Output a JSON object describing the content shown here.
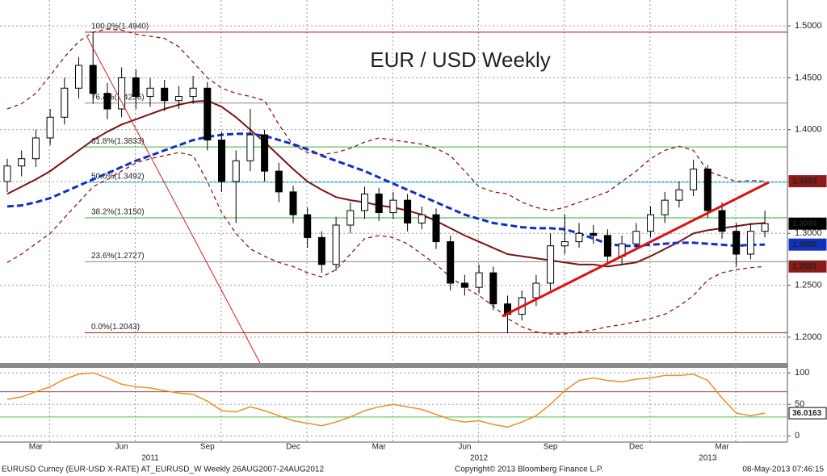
{
  "chart_data": [
    {
      "type": "candlestick",
      "title": "EUR / USD Weekly",
      "title_color": "#d81010",
      "categories": [
        null,
        null,
        "Mar",
        null,
        null,
        null,
        null,
        null,
        "Jun",
        null,
        null,
        null,
        null,
        null,
        "Sep",
        null,
        null,
        null,
        null,
        null,
        "Dec",
        null,
        null,
        null,
        null,
        null,
        "Mar",
        null,
        null,
        null,
        null,
        null,
        "Jun",
        null,
        null,
        null,
        null,
        null,
        "Sep",
        null,
        null,
        null,
        null,
        null,
        "Dec",
        null,
        null,
        null,
        null,
        null,
        "Mar",
        null,
        null,
        null
      ],
      "years": [
        null,
        null,
        null,
        null,
        null,
        null,
        null,
        null,
        null,
        null,
        "2011",
        null,
        null,
        null,
        null,
        null,
        null,
        null,
        null,
        null,
        null,
        null,
        null,
        null,
        null,
        null,
        null,
        null,
        null,
        null,
        null,
        null,
        null,
        "2012",
        null,
        null,
        null,
        null,
        null,
        null,
        null,
        null,
        null,
        null,
        null,
        null,
        null,
        null,
        null,
        "2013",
        null,
        null,
        null,
        null
      ],
      "open": [
        1.35,
        1.365,
        1.372,
        1.392,
        1.412,
        1.44,
        1.462,
        1.435,
        1.42,
        1.45,
        1.432,
        1.44,
        1.428,
        1.432,
        1.44,
        1.39,
        1.35,
        1.37,
        1.395,
        1.36,
        1.34,
        1.318,
        1.296,
        1.27,
        1.308,
        1.322,
        1.338,
        1.32,
        1.332,
        1.31,
        1.318,
        1.292,
        1.252,
        1.248,
        1.262,
        1.232,
        1.222,
        1.238,
        1.252,
        1.288,
        1.292,
        1.3,
        1.298,
        1.278,
        1.29,
        1.302,
        1.318,
        1.332,
        1.342,
        1.362,
        1.322,
        1.302,
        1.28,
        1.302
      ],
      "high": [
        1.372,
        1.38,
        1.4,
        1.42,
        1.45,
        1.47,
        1.494,
        1.445,
        1.46,
        1.458,
        1.45,
        1.448,
        1.442,
        1.452,
        1.446,
        1.398,
        1.38,
        1.42,
        1.4,
        1.368,
        1.346,
        1.325,
        1.302,
        1.316,
        1.33,
        1.345,
        1.344,
        1.34,
        1.338,
        1.326,
        1.324,
        1.298,
        1.26,
        1.27,
        1.268,
        1.24,
        1.245,
        1.26,
        1.3,
        1.318,
        1.31,
        1.308,
        1.304,
        1.298,
        1.31,
        1.326,
        1.34,
        1.35,
        1.371,
        1.366,
        1.33,
        1.31,
        1.31,
        1.322
      ],
      "low": [
        1.34,
        1.355,
        1.364,
        1.385,
        1.405,
        1.43,
        1.425,
        1.41,
        1.412,
        1.42,
        1.422,
        1.418,
        1.42,
        1.425,
        1.38,
        1.34,
        1.31,
        1.36,
        1.35,
        1.33,
        1.31,
        1.286,
        1.262,
        1.264,
        1.3,
        1.314,
        1.312,
        1.314,
        1.302,
        1.304,
        1.285,
        1.245,
        1.24,
        1.242,
        1.226,
        1.204,
        1.216,
        1.23,
        1.245,
        1.28,
        1.286,
        1.29,
        1.27,
        1.27,
        1.284,
        1.296,
        1.31,
        1.325,
        1.336,
        1.315,
        1.295,
        1.268,
        1.275,
        1.296
      ],
      "close": [
        1.365,
        1.372,
        1.392,
        1.412,
        1.44,
        1.462,
        1.435,
        1.42,
        1.45,
        1.432,
        1.44,
        1.428,
        1.432,
        1.44,
        1.39,
        1.35,
        1.37,
        1.395,
        1.36,
        1.34,
        1.318,
        1.296,
        1.27,
        1.308,
        1.322,
        1.338,
        1.32,
        1.332,
        1.31,
        1.318,
        1.292,
        1.252,
        1.248,
        1.262,
        1.232,
        1.222,
        1.238,
        1.252,
        1.288,
        1.292,
        1.3,
        1.298,
        1.278,
        1.29,
        1.302,
        1.318,
        1.332,
        1.342,
        1.362,
        1.322,
        1.302,
        1.28,
        1.302,
        1.3094
      ],
      "up_color": "#ffffff",
      "down_color": "#000000",
      "close_box_color": "#000000",
      "overlays": [
        {
          "color": "#7a1515",
          "dash": false,
          "value_box": false,
          "values": [
            1.338,
            1.345,
            1.352,
            1.36,
            1.37,
            1.38,
            1.39,
            1.398,
            1.405,
            1.41,
            1.415,
            1.42,
            1.424,
            1.427,
            1.428,
            1.422,
            1.412,
            1.4,
            1.388,
            1.375,
            1.362,
            1.35,
            1.342,
            1.335,
            1.332,
            1.33,
            1.327,
            1.325,
            1.322,
            1.318,
            1.312,
            1.305,
            1.298,
            1.292,
            1.286,
            1.28,
            1.278,
            1.276,
            1.274,
            1.272,
            1.27,
            1.27,
            1.268,
            1.27,
            1.272,
            1.278,
            1.285,
            1.292,
            1.3,
            1.303,
            1.305,
            1.307,
            1.309,
            1.31
          ]
        },
        {
          "color": "#1030c0",
          "dash": true,
          "value_box": true,
          "values": [
            1.326,
            1.327,
            1.33,
            1.334,
            1.34,
            1.346,
            1.352,
            1.358,
            1.364,
            1.37,
            1.375,
            1.38,
            1.385,
            1.39,
            1.393,
            1.395,
            1.396,
            1.396,
            1.394,
            1.39,
            1.386,
            1.381,
            1.375,
            1.37,
            1.365,
            1.36,
            1.354,
            1.348,
            1.342,
            1.336,
            1.33,
            1.324,
            1.318,
            1.314,
            1.31,
            1.308,
            1.306,
            1.305,
            1.305,
            1.304,
            1.3,
            1.295,
            1.29,
            1.288,
            1.288,
            1.289,
            1.29,
            1.291,
            1.291,
            1.29,
            1.289,
            1.288,
            1.289,
            1.2892
          ]
        },
        {
          "color": "#8b1a1a",
          "dash": true,
          "value_box": true,
          "values": [
            1.42,
            1.425,
            1.435,
            1.452,
            1.47,
            1.485,
            1.494,
            1.497,
            1.496,
            1.492,
            1.49,
            1.488,
            1.48,
            1.465,
            1.45,
            1.44,
            1.435,
            1.432,
            1.428,
            1.405,
            1.385,
            1.378,
            1.376,
            1.378,
            1.382,
            1.388,
            1.392,
            1.39,
            1.388,
            1.386,
            1.382,
            1.375,
            1.36,
            1.345,
            1.34,
            1.338,
            1.33,
            1.325,
            1.322,
            1.325,
            1.33,
            1.335,
            1.34,
            1.35,
            1.36,
            1.372,
            1.38,
            1.384,
            1.38,
            1.36,
            1.355,
            1.35,
            1.351,
            1.3503
          ]
        },
        {
          "color": "#8b1a1a",
          "dash": true,
          "value_box": true,
          "values": [
            1.272,
            1.28,
            1.29,
            1.3,
            1.315,
            1.33,
            1.345,
            1.352,
            1.36,
            1.368,
            1.372,
            1.375,
            1.378,
            1.375,
            1.35,
            1.32,
            1.3,
            1.285,
            1.278,
            1.272,
            1.268,
            1.262,
            1.258,
            1.265,
            1.28,
            1.295,
            1.298,
            1.296,
            1.29,
            1.28,
            1.27,
            1.258,
            1.248,
            1.24,
            1.23,
            1.218,
            1.21,
            1.205,
            1.203,
            1.203,
            1.205,
            1.207,
            1.21,
            1.212,
            1.215,
            1.218,
            1.222,
            1.23,
            1.24,
            1.255,
            1.262,
            1.265,
            1.267,
            1.2681
          ]
        }
      ],
      "fib_levels": [
        {
          "value": 1.494,
          "label": "100.0%(1.4940)",
          "color": "#a01515"
        },
        {
          "value": 1.4256,
          "label": "76.4%(1.4256)",
          "color": "#888888"
        },
        {
          "value": 1.3833,
          "label": "61.8%(1.3833)",
          "color": "#3ab03a"
        },
        {
          "value": 1.3492,
          "label": "50.0%(1.3492)",
          "color": "#30b8e0"
        },
        {
          "value": 1.315,
          "label": "38.2%(1.3150)",
          "color": "#3ab03a"
        },
        {
          "value": 1.2727,
          "label": "23.6%(1.2727)",
          "color": "#888888"
        },
        {
          "value": 1.2043,
          "label": "0.0%(1.2043)",
          "color": "#a01515"
        }
      ],
      "ylim": [
        1.175,
        1.525
      ],
      "yticks": [
        {
          "value": 1.5,
          "label": "1.5000"
        },
        {
          "value": 1.45,
          "label": "1.4500"
        },
        {
          "value": 1.4,
          "label": "1.4000"
        },
        {
          "value": 1.35,
          "label": "1.3500"
        },
        {
          "value": 1.3,
          "label": "1.3000"
        },
        {
          "value": 1.25,
          "label": "1.2500"
        },
        {
          "value": 1.2,
          "label": "1.2000"
        }
      ],
      "grid": true
    },
    {
      "type": "line",
      "color": "#e8902a",
      "values": [
        58,
        62,
        70,
        78,
        90,
        98,
        100,
        92,
        82,
        78,
        76,
        72,
        68,
        66,
        55,
        40,
        38,
        46,
        40,
        32,
        24,
        20,
        16,
        22,
        30,
        40,
        46,
        50,
        46,
        42,
        34,
        26,
        22,
        24,
        18,
        14,
        22,
        32,
        50,
        72,
        88,
        92,
        88,
        86,
        90,
        92,
        96,
        96,
        98,
        88,
        60,
        36,
        32,
        36.0163
      ],
      "levels": [
        {
          "value": 70,
          "color": "#a03535"
        },
        {
          "value": 30,
          "color": "#40c040"
        }
      ],
      "ylim": [
        -10,
        108
      ],
      "yticks": [
        100,
        50,
        0
      ],
      "grid": true
    }
  ],
  "footer": {
    "left": "EURUSD Curncy (EUR-USD X-RATE) AT_EURUSD_W  Weekly 26AUG2007-24AUG2012",
    "center": "Copyright© 2013 Bloomberg Finance L.P.",
    "right": "08-May-2013 07:46:15"
  }
}
